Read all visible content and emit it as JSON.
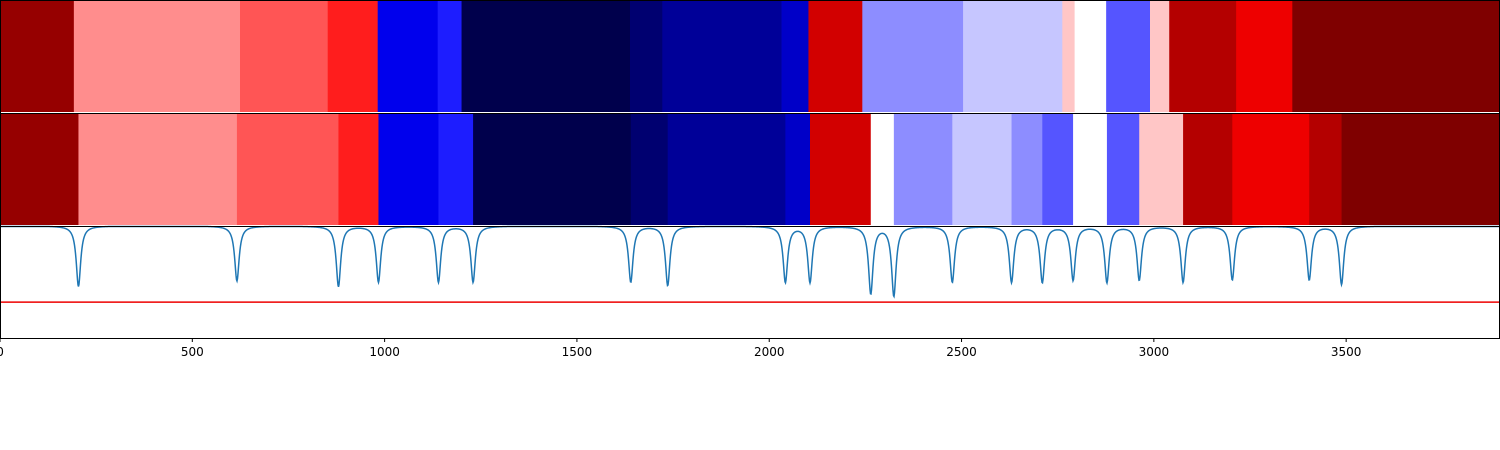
{
  "chart_data": {
    "type": "heatmap",
    "title": "",
    "xlabel": "",
    "ylabel": "",
    "xlim": [
      0,
      3900
    ],
    "colormap": "seismic",
    "xticks": [
      {
        "value": 0,
        "label": "0"
      },
      {
        "value": 500,
        "label": "500"
      },
      {
        "value": 1000,
        "label": "1000"
      },
      {
        "value": 1500,
        "label": "1500"
      },
      {
        "value": 2000,
        "label": "2000"
      },
      {
        "value": 2500,
        "label": "2500"
      },
      {
        "value": 3000,
        "label": "3000"
      },
      {
        "value": 3500,
        "label": "3500"
      }
    ],
    "rows": [
      {
        "segments": [
          {
            "x0": 0,
            "x1": 192,
            "color": "#960000"
          },
          {
            "x0": 192,
            "x1": 624,
            "color": "#ff8d8d"
          },
          {
            "x0": 624,
            "x1": 852,
            "color": "#ff5555"
          },
          {
            "x0": 852,
            "x1": 982,
            "color": "#ff1d1d"
          },
          {
            "x0": 982,
            "x1": 1138,
            "color": "#0000ed"
          },
          {
            "x0": 1138,
            "x1": 1200,
            "color": "#1d1dff"
          },
          {
            "x0": 1200,
            "x1": 1638,
            "color": "#00004c"
          },
          {
            "x0": 1638,
            "x1": 1722,
            "color": "#000070"
          },
          {
            "x0": 1722,
            "x1": 2032,
            "color": "#000098"
          },
          {
            "x0": 2032,
            "x1": 2102,
            "color": "#0000c8"
          },
          {
            "x0": 2102,
            "x1": 2242,
            "color": "#d20000"
          },
          {
            "x0": 2242,
            "x1": 2504,
            "color": "#8d8dff"
          },
          {
            "x0": 2504,
            "x1": 2762,
            "color": "#c6c6ff"
          },
          {
            "x0": 2762,
            "x1": 2794,
            "color": "#ffc6c6"
          },
          {
            "x0": 2794,
            "x1": 2876,
            "color": "#ffffff"
          },
          {
            "x0": 2876,
            "x1": 2990,
            "color": "#5555ff"
          },
          {
            "x0": 2990,
            "x1": 3040,
            "color": "#ffc6c6"
          },
          {
            "x0": 3040,
            "x1": 3214,
            "color": "#b40000"
          },
          {
            "x0": 3214,
            "x1": 3360,
            "color": "#ee0000"
          },
          {
            "x0": 3360,
            "x1": 3900,
            "color": "#7f0000"
          }
        ]
      },
      {
        "segments": [
          {
            "x0": 0,
            "x1": 204,
            "color": "#960000"
          },
          {
            "x0": 204,
            "x1": 616,
            "color": "#ff8d8d"
          },
          {
            "x0": 616,
            "x1": 880,
            "color": "#ff5555"
          },
          {
            "x0": 880,
            "x1": 984,
            "color": "#ff1d1d"
          },
          {
            "x0": 984,
            "x1": 1140,
            "color": "#0000ed"
          },
          {
            "x0": 1140,
            "x1": 1230,
            "color": "#1d1dff"
          },
          {
            "x0": 1230,
            "x1": 1640,
            "color": "#00004c"
          },
          {
            "x0": 1640,
            "x1": 1736,
            "color": "#000070"
          },
          {
            "x0": 1736,
            "x1": 2042,
            "color": "#000098"
          },
          {
            "x0": 2042,
            "x1": 2106,
            "color": "#0000c8"
          },
          {
            "x0": 2106,
            "x1": 2264,
            "color": "#d20000"
          },
          {
            "x0": 2264,
            "x1": 2324,
            "color": "#ffffff"
          },
          {
            "x0": 2324,
            "x1": 2476,
            "color": "#8d8dff"
          },
          {
            "x0": 2476,
            "x1": 2630,
            "color": "#c6c6ff"
          },
          {
            "x0": 2630,
            "x1": 2710,
            "color": "#8d8dff"
          },
          {
            "x0": 2710,
            "x1": 2790,
            "color": "#5555ff"
          },
          {
            "x0": 2790,
            "x1": 2878,
            "color": "#ffffff"
          },
          {
            "x0": 2878,
            "x1": 2962,
            "color": "#5555ff"
          },
          {
            "x0": 2962,
            "x1": 3076,
            "color": "#ffc6c6"
          },
          {
            "x0": 3076,
            "x1": 3204,
            "color": "#b40000"
          },
          {
            "x0": 3204,
            "x1": 3404,
            "color": "#ee0000"
          },
          {
            "x0": 3404,
            "x1": 3488,
            "color": "#b40000"
          },
          {
            "x0": 3488,
            "x1": 3900,
            "color": "#7f0000"
          }
        ]
      }
    ],
    "line_panel": {
      "line_color": "#1f77b4",
      "threshold_color": "#ee0000",
      "ylim": [
        0,
        1
      ],
      "baseline": 1.0,
      "threshold": 0.32,
      "dips": [
        {
          "x": 204,
          "depth": 0.54
        },
        {
          "x": 616,
          "depth": 0.49
        },
        {
          "x": 880,
          "depth": 0.54
        },
        {
          "x": 984,
          "depth": 0.5
        },
        {
          "x": 1140,
          "depth": 0.5
        },
        {
          "x": 1230,
          "depth": 0.5
        },
        {
          "x": 1640,
          "depth": 0.5
        },
        {
          "x": 1736,
          "depth": 0.53
        },
        {
          "x": 2042,
          "depth": 0.5
        },
        {
          "x": 2106,
          "depth": 0.5
        },
        {
          "x": 2264,
          "depth": 0.6
        },
        {
          "x": 2324,
          "depth": 0.62
        },
        {
          "x": 2476,
          "depth": 0.5
        },
        {
          "x": 2630,
          "depth": 0.5
        },
        {
          "x": 2710,
          "depth": 0.5
        },
        {
          "x": 2790,
          "depth": 0.48
        },
        {
          "x": 2878,
          "depth": 0.5
        },
        {
          "x": 2962,
          "depth": 0.48
        },
        {
          "x": 3076,
          "depth": 0.5
        },
        {
          "x": 3204,
          "depth": 0.48
        },
        {
          "x": 3404,
          "depth": 0.48
        },
        {
          "x": 3488,
          "depth": 0.52
        }
      ]
    }
  }
}
